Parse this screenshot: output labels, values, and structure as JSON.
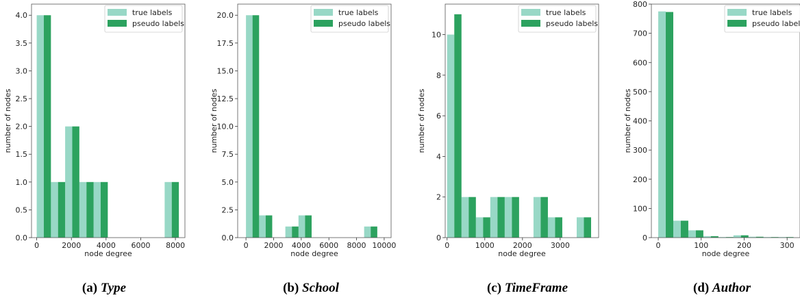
{
  "colors": {
    "true_labels": "#98d8c6",
    "pseudo_labels": "#2ca25f"
  },
  "chart_data": [
    {
      "type": "bar",
      "caption_label": "(a)",
      "caption_name": "Type",
      "xlabel": "node degree",
      "ylabel": "number of nodes",
      "xlim": [
        -300,
        8550
      ],
      "ylim": [
        0,
        4.2
      ],
      "bin_width": 820,
      "xticks": [
        0,
        2000,
        4000,
        6000,
        8000
      ],
      "xtick_labels": [
        "0",
        "2000",
        "4000",
        "6000",
        "8000"
      ],
      "yticks": [
        0,
        0.5,
        1,
        1.5,
        2,
        2.5,
        3,
        3.5,
        4
      ],
      "ytick_labels": [
        "0.0",
        "0.5",
        "1.0",
        "1.5",
        "2.0",
        "2.5",
        "3.0",
        "3.5",
        "4.0"
      ],
      "bin_starts": [
        0,
        820,
        1640,
        2460,
        3280,
        7380
      ],
      "legend_position": "top-right",
      "series": [
        {
          "name": "true labels",
          "values": [
            4,
            1,
            2,
            1,
            1,
            1
          ]
        },
        {
          "name": "pseudo labels",
          "values": [
            4,
            1,
            2,
            1,
            1,
            1
          ]
        }
      ]
    },
    {
      "type": "bar",
      "caption_label": "(b)",
      "caption_name": "School",
      "xlabel": "node degree",
      "ylabel": "number of nodes",
      "xlim": [
        -600,
        10500
      ],
      "ylim": [
        0,
        21
      ],
      "bin_width": 950,
      "xticks": [
        0,
        2000,
        4000,
        6000,
        8000,
        10000
      ],
      "xtick_labels": [
        "0",
        "2000",
        "4000",
        "6000",
        "8000",
        "10000"
      ],
      "yticks": [
        0,
        2.5,
        5,
        7.5,
        10,
        12.5,
        15,
        17.5,
        20
      ],
      "ytick_labels": [
        "0.0",
        "2.5",
        "5.0",
        "7.5",
        "10.0",
        "12.5",
        "15.0",
        "17.5",
        "20.0"
      ],
      "bin_starts": [
        0,
        950,
        2850,
        3800,
        8550
      ],
      "legend_position": "top-right",
      "series": [
        {
          "name": "true labels",
          "values": [
            20,
            2,
            1,
            2,
            1
          ]
        },
        {
          "name": "pseudo labels",
          "values": [
            20,
            2,
            1,
            2,
            1
          ]
        }
      ]
    },
    {
      "type": "bar",
      "caption_label": "(c)",
      "caption_name": "TimeFrame",
      "xlabel": "node degree",
      "ylabel": "number of nodes",
      "xlim": [
        -50,
        4020
      ],
      "ylim": [
        0,
        11.5
      ],
      "bin_width": 382,
      "xticks": [
        0,
        1000,
        2000,
        3000
      ],
      "xtick_labels": [
        "0",
        "1000",
        "2000",
        "3000"
      ],
      "yticks": [
        0,
        2,
        4,
        6,
        8,
        10
      ],
      "ytick_labels": [
        "0",
        "2",
        "4",
        "6",
        "8",
        "10"
      ],
      "bin_starts": [
        0,
        382,
        764,
        1146,
        1528,
        2292,
        2674,
        3438
      ],
      "legend_position": "top-right",
      "series": [
        {
          "name": "true labels",
          "values": [
            10,
            2,
            1,
            2,
            2,
            2,
            1,
            1
          ]
        },
        {
          "name": "pseudo labels",
          "values": [
            11,
            2,
            1,
            2,
            2,
            2,
            1,
            1
          ]
        }
      ]
    },
    {
      "type": "bar",
      "caption_label": "(d)",
      "caption_name": "Author",
      "xlabel": "node degree",
      "ylabel": "number of nodes",
      "xlim": [
        -16,
        330
      ],
      "ylim": [
        0,
        800
      ],
      "bin_width": 35,
      "xticks": [
        0,
        100,
        200,
        300
      ],
      "xtick_labels": [
        "0",
        "100",
        "200",
        "300"
      ],
      "yticks": [
        0,
        100,
        200,
        300,
        400,
        500,
        600,
        700,
        800
      ],
      "ytick_labels": [
        "0",
        "100",
        "200",
        "300",
        "400",
        "500",
        "600",
        "700",
        "800"
      ],
      "bin_starts": [
        0,
        35,
        70,
        105,
        140,
        175,
        210,
        245,
        280
      ],
      "legend_position": "top-right",
      "series": [
        {
          "name": "true labels",
          "values": [
            775,
            58,
            25,
            5,
            2,
            8,
            3,
            2,
            2
          ]
        },
        {
          "name": "pseudo labels",
          "values": [
            773,
            58,
            25,
            5,
            2,
            8,
            3,
            2,
            2
          ]
        }
      ]
    }
  ]
}
